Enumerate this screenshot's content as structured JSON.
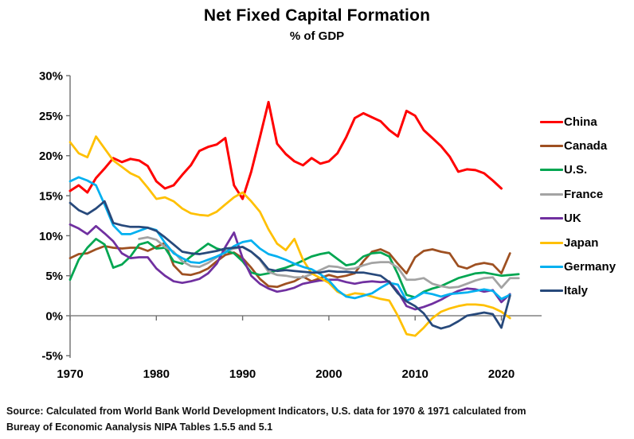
{
  "title": "Net Fixed Capital Formation",
  "subtitle": "% of GDP",
  "source": {
    "line1": "Source:  Calculated from World Bank World Development Indicators, U.S. data for 1970 & 1971 calculated from",
    "line2": "Bureay of Economic Aanalysis NIPA Tables 1.5.5 and 5.1"
  },
  "chart_data": {
    "type": "line",
    "title": "Net Fixed Capital Formation",
    "subtitle": "% of GDP",
    "grid": "zero-line-only",
    "legend_position": "right",
    "y_axis": {
      "min": -5,
      "max": 30,
      "tick_step": 5,
      "unit": "%",
      "tick_values": [
        30,
        25,
        20,
        15,
        10,
        5,
        0,
        -5
      ],
      "tick_labels": [
        "30%",
        "25%",
        "20%",
        "15%",
        "10%",
        "5%",
        "0%",
        "-5%"
      ]
    },
    "x_axis": {
      "min": 1970,
      "max": 2022,
      "tick_years": [
        1970,
        1980,
        1990,
        2000,
        2010,
        2020
      ],
      "tick_labels": [
        "1970",
        "1980",
        "1990",
        "2000",
        "2010",
        "2020"
      ]
    },
    "series": [
      {
        "name": "China",
        "color": "#FF0000",
        "width": 3,
        "start_year": 1970,
        "values": [
          15.6,
          16.3,
          15.4,
          17.2,
          18.4,
          19.7,
          19.2,
          19.6,
          19.4,
          18.7,
          16.8,
          15.9,
          16.3,
          17.6,
          18.8,
          20.6,
          21.1,
          21.4,
          22.2,
          16.3,
          14.6,
          18.0,
          22.3,
          26.7,
          21.5,
          20.2,
          19.3,
          18.8,
          19.7,
          19.0,
          19.3,
          20.3,
          22.3,
          24.7,
          25.3,
          24.8,
          24.3,
          23.2,
          22.4,
          25.6,
          25.0,
          23.2,
          22.2,
          21.2,
          19.9,
          18.0,
          18.3,
          18.2,
          17.8,
          16.9,
          15.9
        ]
      },
      {
        "name": "Canada",
        "color": "#9E5021",
        "width": 2.75,
        "start_year": 1970,
        "values": [
          7.2,
          7.7,
          7.8,
          8.3,
          8.7,
          8.5,
          8.4,
          8.5,
          8.5,
          8.1,
          8.6,
          9.1,
          6.3,
          5.2,
          5.1,
          5.4,
          5.9,
          6.8,
          7.6,
          7.9,
          7.2,
          6.0,
          4.6,
          3.7,
          3.6,
          4.0,
          4.3,
          4.9,
          4.3,
          4.7,
          5.1,
          4.8,
          5.0,
          5.3,
          6.8,
          8.0,
          8.3,
          7.8,
          6.5,
          5.3,
          7.3,
          8.1,
          8.3,
          8.0,
          7.8,
          6.2,
          5.9,
          6.4,
          6.6,
          6.4,
          5.3,
          7.8
        ]
      },
      {
        "name": "U.S.",
        "color": "#00A651",
        "width": 2.75,
        "start_year": 1970,
        "values": [
          4.5,
          7.0,
          8.5,
          9.6,
          8.9,
          6.0,
          6.4,
          7.4,
          8.9,
          9.2,
          8.4,
          8.5,
          6.8,
          6.5,
          7.4,
          8.2,
          9.0,
          8.4,
          8.1,
          7.8,
          6.8,
          5.4,
          5.1,
          5.3,
          5.7,
          6.0,
          6.4,
          6.9,
          7.4,
          7.7,
          7.9,
          7.1,
          6.3,
          6.5,
          7.4,
          7.8,
          7.9,
          7.4,
          5.2,
          2.6,
          2.3,
          3.0,
          3.4,
          3.7,
          4.2,
          4.7,
          5.0,
          5.3,
          5.4,
          5.2,
          5.0,
          5.1,
          5.2
        ]
      },
      {
        "name": "France",
        "color": "#A3A3A3",
        "width": 2.75,
        "start_year": 1978,
        "values": [
          9.6,
          9.8,
          9.5,
          8.6,
          8.0,
          6.8,
          6.2,
          6.1,
          6.6,
          7.3,
          8.0,
          8.4,
          8.6,
          8.0,
          7.0,
          5.5,
          5.1,
          5.0,
          4.8,
          4.8,
          5.2,
          5.7,
          6.2,
          6.1,
          5.8,
          5.9,
          6.3,
          6.6,
          6.7,
          6.7,
          6.0,
          4.5,
          4.5,
          4.7,
          4.0,
          3.7,
          3.5,
          3.6,
          4.0,
          4.4,
          4.7,
          4.8,
          3.5,
          4.7,
          4.7
        ]
      },
      {
        "name": "UK",
        "color": "#7030A0",
        "width": 2.75,
        "start_year": 1970,
        "values": [
          11.4,
          10.9,
          10.2,
          11.2,
          10.3,
          9.3,
          7.8,
          7.2,
          7.3,
          7.3,
          5.9,
          5.0,
          4.3,
          4.1,
          4.3,
          4.6,
          5.3,
          6.5,
          8.6,
          10.4,
          7.2,
          5.0,
          4.0,
          3.4,
          3.0,
          3.2,
          3.5,
          4.0,
          4.2,
          4.4,
          4.5,
          4.5,
          4.2,
          4.0,
          4.2,
          4.3,
          4.2,
          4.3,
          3.0,
          1.2,
          0.8,
          1.1,
          1.5,
          2.0,
          2.6,
          3.1,
          3.4,
          3.3,
          3.0,
          3.2,
          1.7,
          2.7
        ]
      },
      {
        "name": "Japan",
        "color": "#FFC000",
        "width": 2.75,
        "start_year": 1970,
        "values": [
          21.7,
          20.3,
          19.8,
          22.4,
          20.9,
          19.4,
          18.6,
          17.8,
          17.3,
          16.0,
          14.6,
          14.8,
          14.3,
          13.4,
          12.8,
          12.6,
          12.5,
          13.0,
          13.9,
          14.8,
          15.4,
          14.3,
          13.0,
          10.8,
          9.0,
          8.2,
          9.6,
          7.0,
          5.3,
          4.7,
          4.1,
          3.0,
          2.5,
          2.8,
          2.7,
          2.4,
          2.1,
          1.9,
          0.0,
          -2.3,
          -2.5,
          -1.5,
          -0.3,
          0.5,
          0.9,
          1.2,
          1.4,
          1.4,
          1.3,
          1.0,
          0.5,
          -0.3
        ]
      },
      {
        "name": "Germany",
        "color": "#00B0F0",
        "width": 2.75,
        "start_year": 1970,
        "values": [
          16.8,
          17.3,
          16.9,
          16.3,
          13.9,
          11.3,
          10.2,
          10.2,
          10.6,
          11.0,
          10.7,
          9.1,
          7.8,
          7.2,
          6.7,
          6.6,
          7.0,
          7.4,
          7.9,
          8.7,
          9.2,
          9.4,
          8.4,
          7.7,
          7.4,
          7.0,
          6.5,
          6.1,
          5.8,
          5.2,
          4.4,
          3.2,
          2.4,
          2.2,
          2.5,
          2.8,
          3.5,
          4.1,
          3.9,
          1.9,
          2.3,
          2.9,
          2.7,
          2.4,
          2.7,
          2.8,
          2.9,
          3.1,
          3.3,
          3.1,
          2.1,
          2.6
        ]
      },
      {
        "name": "Italy",
        "color": "#27497B",
        "width": 2.75,
        "start_year": 1970,
        "values": [
          14.1,
          13.2,
          12.7,
          13.4,
          14.3,
          11.6,
          11.3,
          11.1,
          11.1,
          11.0,
          10.6,
          9.8,
          8.9,
          8.0,
          7.8,
          7.7,
          7.9,
          8.1,
          8.4,
          8.5,
          8.6,
          8.0,
          7.1,
          5.8,
          5.6,
          5.7,
          5.6,
          5.5,
          5.4,
          5.4,
          5.6,
          5.5,
          5.5,
          5.4,
          5.4,
          5.2,
          5.0,
          4.2,
          2.8,
          1.8,
          1.2,
          0.3,
          -1.2,
          -1.6,
          -1.3,
          -0.7,
          0.0,
          0.2,
          0.4,
          0.2,
          -1.5,
          2.5
        ]
      }
    ]
  }
}
